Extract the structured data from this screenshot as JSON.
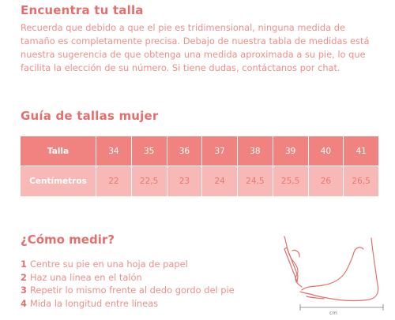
{
  "header": {
    "title": "Encuentra tu talla",
    "intro": "Recuerda que debido a que el pie es tridimensional, ninguna medida de tamaño es completamente precisa. Debajo de nuestra tabla de medidas está nuestra sugerencia de que obtenga una medida aproximada a su pie, lo que facilita la elección de su número. Si tiene dudas, contáctanos por chat."
  },
  "guide": {
    "title": "Guía de tallas mujer",
    "size_label": "Talla",
    "cm_label": "Centímetros",
    "sizes": [
      "34",
      "35",
      "36",
      "37",
      "38",
      "39",
      "40",
      "41"
    ],
    "centimeters": [
      "22",
      "22,5",
      "23",
      "24",
      "24,5",
      "25,5",
      "26",
      "26,5"
    ]
  },
  "howto": {
    "title": "¿Cómo medir?",
    "steps": [
      {
        "num": "1",
        "text": "Centre su pie en una hoja de papel"
      },
      {
        "num": "2",
        "text": "Haz una línea en el talón"
      },
      {
        "num": "3",
        "text": "Repetir lo mismo frente al dedo gordo del pie"
      },
      {
        "num": "4",
        "text": "Mida la longitud entre líneas"
      }
    ],
    "illustration": {
      "icon": "foot-measurement-icon",
      "unit_label": "cm"
    }
  },
  "colors": {
    "accent": "#e46f6c",
    "header_row": "#f0837f",
    "data_row": "#f8b9b6",
    "text": "#ef8f8b"
  }
}
